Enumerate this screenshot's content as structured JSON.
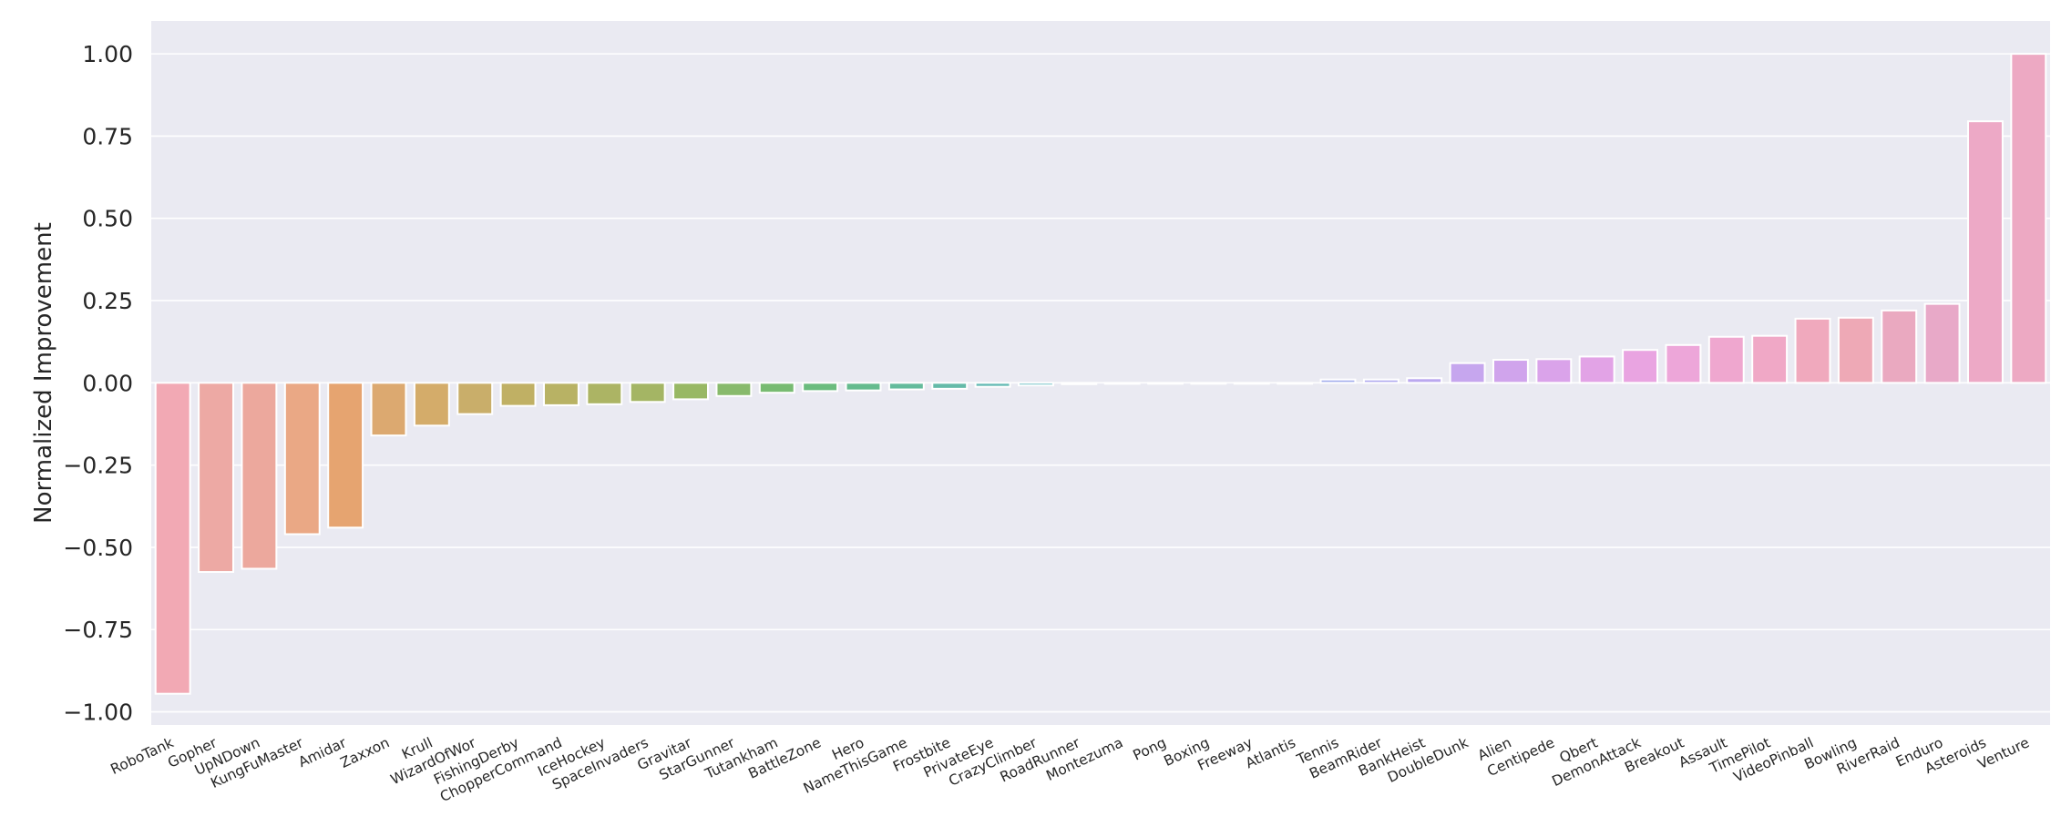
{
  "chart_data": {
    "type": "bar",
    "ylabel": "Normalized Improvement",
    "xlabel": "",
    "title": "",
    "ylim": [
      -1.04,
      1.1
    ],
    "yticks": [
      1.0,
      0.75,
      0.5,
      0.25,
      0.0,
      -0.25,
      -0.5,
      -0.75,
      -1.0
    ],
    "ytick_labels": [
      "1.00",
      "0.75",
      "0.50",
      "0.25",
      "0.00",
      "−0.25",
      "−0.50",
      "−0.75",
      "−1.00"
    ],
    "grid": true,
    "background": "#eaeaf2",
    "categories": [
      "RoboTank",
      "Gopher",
      "UpNDown",
      "KungFuMaster",
      "Amidar",
      "Zaxxon",
      "Krull",
      "WizardOfWor",
      "FishingDerby",
      "ChopperCommand",
      "IceHockey",
      "SpaceInvaders",
      "Gravitar",
      "StarGunner",
      "Tutankham",
      "BattleZone",
      "Hero",
      "NameThisGame",
      "Frostbite",
      "PrivateEye",
      "CrazyClimber",
      "RoadRunner",
      "Montezuma",
      "Pong",
      "Boxing",
      "Freeway",
      "Atlantis",
      "Tennis",
      "BeamRider",
      "BankHeist",
      "DoubleDunk",
      "Alien",
      "Centipede",
      "Qbert",
      "DemonAttack",
      "Breakout",
      "Assault",
      "TimePilot",
      "VideoPinball",
      "Bowling",
      "RiverRaid",
      "Enduro",
      "Asteroids",
      "Venture"
    ],
    "values": [
      -0.945,
      -0.575,
      -0.565,
      -0.46,
      -0.44,
      -0.16,
      -0.13,
      -0.095,
      -0.07,
      -0.068,
      -0.065,
      -0.058,
      -0.05,
      -0.04,
      -0.03,
      -0.025,
      -0.023,
      -0.02,
      -0.018,
      -0.012,
      -0.008,
      -0.004,
      -0.003,
      -0.002,
      -0.002,
      -0.002,
      -0.002,
      0.01,
      0.01,
      0.014,
      0.06,
      0.07,
      0.072,
      0.08,
      0.1,
      0.115,
      0.14,
      0.143,
      0.195,
      0.198,
      0.22,
      0.24,
      0.795,
      1.0
    ],
    "colors": [
      "#f2a9b4",
      "#eda9a4",
      "#eca89d",
      "#eaa885",
      "#e6a470",
      "#dca970",
      "#d4ac6a",
      "#c9ae6a",
      "#c0b064",
      "#b8b264",
      "#acb464",
      "#a4b564",
      "#98b864",
      "#88ba6c",
      "#78bb72",
      "#6bbc7e",
      "#65bb8e",
      "#64bb9c",
      "#64baa8",
      "#64bab4",
      "#66bac0",
      "#6dbac8",
      "#6db9cf",
      "#72b5d5",
      "#7ab2dc",
      "#88b0e3",
      "#95afe8",
      "#a3aded",
      "#b0aaef",
      "#bba8ef",
      "#c6a6ee",
      "#d0a4ec",
      "#daa3ea",
      "#e2a3e6",
      "#e9a4e1",
      "#eda6d9",
      "#efa7cf",
      "#f0a8c6",
      "#f0a9bd",
      "#eea9b6",
      "#eaa9c0",
      "#e8a9c8",
      "#eda9c6",
      "#eda9c3"
    ]
  }
}
